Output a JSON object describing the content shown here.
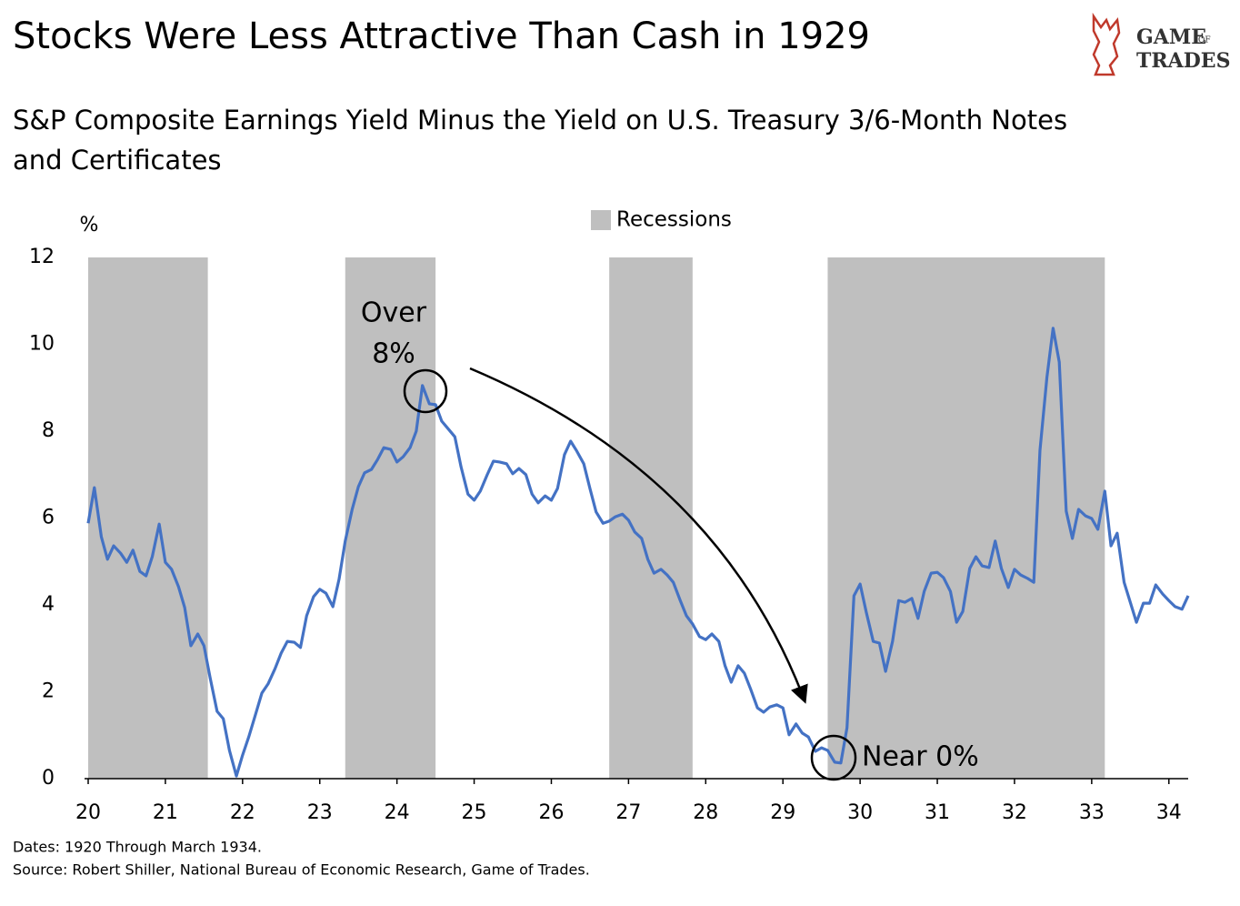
{
  "chart_data": {
    "type": "line",
    "title": "Stocks Were Less Attractive Than Cash in 1929",
    "subtitle": [
      "S&P Composite Earnings Yield Minus the Yield on U.S. Treasury 3/6-Month Notes",
      "and Certificates"
    ],
    "y_label": "%",
    "logo": {
      "top": "GAME",
      "of": "OF",
      "bottom": "TRADES"
    },
    "footnotes": [
      "Dates: 1920 Through March 1934.",
      "Source: Robert Shiller, National Bureau of Economic Research, Game of Trades."
    ],
    "annotations": [
      {
        "lines": [
          "Over",
          "8%"
        ]
      },
      {
        "lines": [
          "Near 0%"
        ]
      }
    ],
    "recessions": {
      "name": "Recessions",
      "color": "#bfbfbf",
      "spans": [
        [
          1920.0,
          1921.55
        ],
        [
          1923.33,
          1924.5
        ],
        [
          1926.75,
          1927.83
        ],
        [
          1929.58,
          1933.17
        ]
      ]
    },
    "xlim": [
      1920,
      1934.25
    ],
    "xticks": [
      {
        "value": 1920,
        "label": "20"
      },
      {
        "value": 1921,
        "label": "21"
      },
      {
        "value": 1922,
        "label": "22"
      },
      {
        "value": 1923,
        "label": "23"
      },
      {
        "value": 1924,
        "label": "24"
      },
      {
        "value": 1925,
        "label": "25"
      },
      {
        "value": 1926,
        "label": "26"
      },
      {
        "value": 1927,
        "label": "27"
      },
      {
        "value": 1928,
        "label": "28"
      },
      {
        "value": 1929,
        "label": "29"
      },
      {
        "value": 1930,
        "label": "30"
      },
      {
        "value": 1931,
        "label": "31"
      },
      {
        "value": 1932,
        "label": "32"
      },
      {
        "value": 1933,
        "label": "33"
      },
      {
        "value": 1934,
        "label": "34"
      }
    ],
    "ylim": [
      0,
      12
    ],
    "yticks": [
      0,
      2,
      4,
      6,
      8,
      10,
      12
    ],
    "x": [
      1920,
      1920.08,
      1920.17,
      1920.25,
      1920.33,
      1920.42,
      1920.5,
      1920.58,
      1920.67,
      1920.75,
      1920.83,
      1920.92,
      1921,
      1921.08,
      1921.17,
      1921.25,
      1921.33,
      1921.42,
      1921.5,
      1921.58,
      1921.67,
      1921.75,
      1921.83,
      1921.92,
      1922,
      1922.08,
      1922.17,
      1922.25,
      1922.33,
      1922.42,
      1922.5,
      1922.58,
      1922.67,
      1922.75,
      1922.83,
      1922.92,
      1923,
      1923.08,
      1923.17,
      1923.25,
      1923.33,
      1923.42,
      1923.5,
      1923.58,
      1923.67,
      1923.75,
      1923.83,
      1923.92,
      1924,
      1924.08,
      1924.17,
      1924.25,
      1924.33,
      1924.42,
      1924.5,
      1924.58,
      1924.67,
      1924.75,
      1924.83,
      1924.92,
      1925,
      1925.08,
      1925.17,
      1925.25,
      1925.33,
      1925.42,
      1925.5,
      1925.58,
      1925.67,
      1925.75,
      1925.83,
      1925.92,
      1926,
      1926.08,
      1926.17,
      1926.25,
      1926.33,
      1926.42,
      1926.5,
      1926.58,
      1926.67,
      1926.75,
      1926.83,
      1926.92,
      1927,
      1927.08,
      1927.17,
      1927.25,
      1927.33,
      1927.42,
      1927.5,
      1927.58,
      1927.67,
      1927.75,
      1927.83,
      1927.92,
      1928,
      1928.08,
      1928.17,
      1928.25,
      1928.33,
      1928.42,
      1928.5,
      1928.58,
      1928.67,
      1928.75,
      1928.83,
      1928.92,
      1929,
      1929.08,
      1929.17,
      1929.25,
      1929.33,
      1929.42,
      1929.5,
      1929.58,
      1929.67,
      1929.75,
      1929.83,
      1929.92,
      1930,
      1930.08,
      1930.17,
      1930.25,
      1930.33,
      1930.42,
      1930.5,
      1930.58,
      1930.67,
      1930.75,
      1930.83,
      1930.92,
      1931,
      1931.08,
      1931.17,
      1931.25,
      1931.33,
      1931.42,
      1931.5,
      1931.58,
      1931.67,
      1931.75,
      1931.83,
      1931.92,
      1932,
      1932.08,
      1932.17,
      1932.25,
      1932.33,
      1932.42,
      1932.5,
      1932.58,
      1932.67,
      1932.75,
      1932.83,
      1932.92,
      1933,
      1933.08,
      1933.17,
      1933.25,
      1933.33,
      1933.42,
      1933.5,
      1933.58,
      1933.67,
      1933.75,
      1933.83,
      1933.92,
      1934,
      1934.08,
      1934.17,
      1934.25
    ],
    "series": [
      {
        "color": "#4472c4",
        "values": [
          5.88,
          6.7,
          5.57,
          5.05,
          5.36,
          5.19,
          4.98,
          5.26,
          4.77,
          4.67,
          5.11,
          5.86,
          4.98,
          4.82,
          4.42,
          3.94,
          3.06,
          3.33,
          3.06,
          2.32,
          1.55,
          1.38,
          0.65,
          0.06,
          0.54,
          0.96,
          1.49,
          1.97,
          2.18,
          2.53,
          2.89,
          3.16,
          3.14,
          3.02,
          3.75,
          4.19,
          4.36,
          4.27,
          3.96,
          4.59,
          5.47,
          6.2,
          6.72,
          7.04,
          7.12,
          7.35,
          7.62,
          7.58,
          7.29,
          7.41,
          7.62,
          8.0,
          9.05,
          8.63,
          8.61,
          8.23,
          8.04,
          7.87,
          7.18,
          6.55,
          6.41,
          6.62,
          7.0,
          7.31,
          7.29,
          7.25,
          7.02,
          7.14,
          7.0,
          6.55,
          6.35,
          6.51,
          6.41,
          6.68,
          7.46,
          7.77,
          7.54,
          7.25,
          6.68,
          6.14,
          5.88,
          5.93,
          6.03,
          6.09,
          5.95,
          5.68,
          5.53,
          5.05,
          4.73,
          4.82,
          4.69,
          4.52,
          4.1,
          3.75,
          3.56,
          3.27,
          3.2,
          3.33,
          3.16,
          2.6,
          2.22,
          2.6,
          2.43,
          2.07,
          1.63,
          1.53,
          1.65,
          1.7,
          1.63,
          1.01,
          1.26,
          1.05,
          0.96,
          0.63,
          0.71,
          0.65,
          0.38,
          0.36,
          1.17,
          4.21,
          4.48,
          3.83,
          3.16,
          3.12,
          2.47,
          3.16,
          4.1,
          4.06,
          4.15,
          3.69,
          4.31,
          4.73,
          4.75,
          4.63,
          4.31,
          3.6,
          3.85,
          4.84,
          5.11,
          4.9,
          4.86,
          5.47,
          4.84,
          4.4,
          4.82,
          4.69,
          4.61,
          4.52,
          7.56,
          9.24,
          10.37,
          9.59,
          6.16,
          5.53,
          6.2,
          6.05,
          5.99,
          5.74,
          6.62,
          5.36,
          5.65,
          4.52,
          4.06,
          3.6,
          4.04,
          4.04,
          4.46,
          4.25,
          4.1,
          3.96,
          3.9,
          4.21
        ]
      }
    ]
  }
}
